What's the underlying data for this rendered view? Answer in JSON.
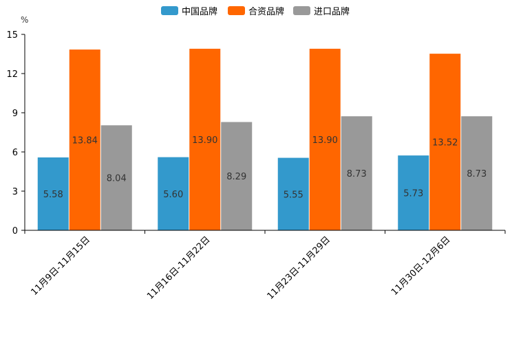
{
  "chart_data": {
    "type": "bar",
    "title": "",
    "xlabel": "",
    "ylabel": "%",
    "ylim": [
      0,
      15
    ],
    "yticks": [
      0,
      3,
      6,
      9,
      12,
      15
    ],
    "categories": [
      "11月9日-11月15日",
      "11月16日-11月22日",
      "11月23日-11月29日",
      "11月30日-12月6日"
    ],
    "series": [
      {
        "name": "中国品牌",
        "color": "#3399cc",
        "values": [
          5.58,
          5.6,
          5.55,
          5.73
        ],
        "labels": [
          "5.58",
          "5.60",
          "5.55",
          "5.73"
        ]
      },
      {
        "name": "合资品牌",
        "color": "#ff6600",
        "values": [
          13.84,
          13.9,
          13.9,
          13.52
        ],
        "labels": [
          "13.84",
          "13.90",
          "13.90",
          "13.52"
        ]
      },
      {
        "name": "进口品牌",
        "color": "#999999",
        "values": [
          8.04,
          8.29,
          8.73,
          8.73
        ],
        "labels": [
          "8.04",
          "8.29",
          "8.73",
          "8.73"
        ]
      }
    ],
    "legend_position": "top-center",
    "grid": false
  }
}
